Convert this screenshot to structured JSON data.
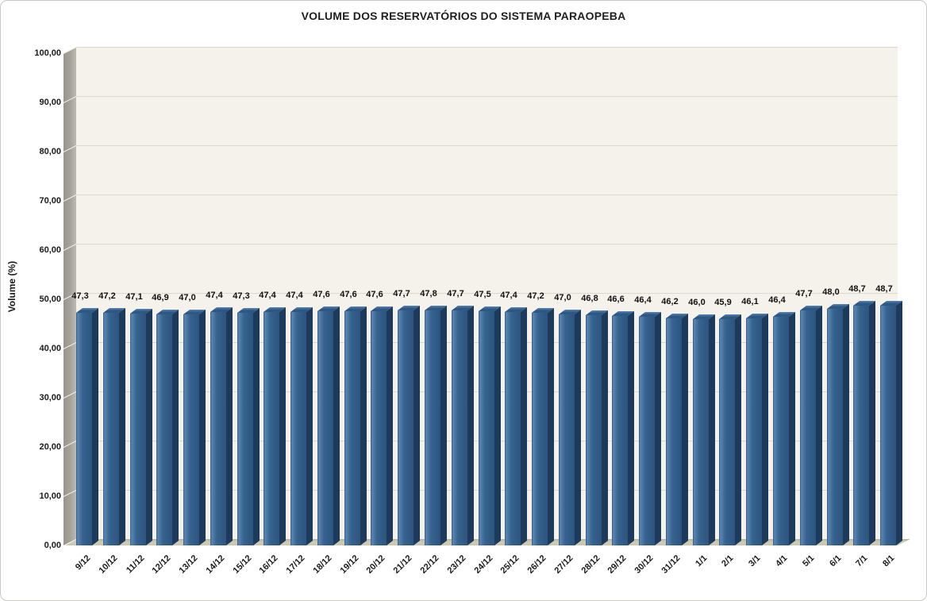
{
  "chart_data": {
    "type": "bar",
    "style_3d": true,
    "title": "VOLUME DOS RESERVATÓRIOS DO SISTEMA PARAOPEBA",
    "xlabel": "",
    "ylabel": "Volume (%)",
    "ylim": [
      0,
      100
    ],
    "y_tick_step": 10,
    "grid": true,
    "legend": false,
    "y_ticks": [
      "0,00",
      "10,00",
      "20,00",
      "30,00",
      "40,00",
      "50,00",
      "60,00",
      "70,00",
      "80,00",
      "90,00",
      "100,00"
    ],
    "categories": [
      "9/12",
      "10/12",
      "11/12",
      "12/12",
      "13/12",
      "14/12",
      "15/12",
      "16/12",
      "17/12",
      "18/12",
      "19/12",
      "20/12",
      "21/12",
      "22/12",
      "23/12",
      "24/12",
      "25/12",
      "26/12",
      "27/12",
      "28/12",
      "29/12",
      "30/12",
      "31/12",
      "1/1",
      "2/1",
      "3/1",
      "4/1",
      "5/1",
      "6/1",
      "7/1",
      "8/1"
    ],
    "values": [
      47.3,
      47.2,
      47.1,
      46.9,
      47.0,
      47.4,
      47.3,
      47.4,
      47.4,
      47.6,
      47.6,
      47.6,
      47.7,
      47.8,
      47.7,
      47.5,
      47.4,
      47.2,
      47.0,
      46.8,
      46.6,
      46.4,
      46.2,
      46.0,
      45.9,
      46.1,
      46.4,
      47.7,
      48.0,
      48.7,
      48.7
    ],
    "data_labels": [
      "47,3",
      "47,2",
      "47,1",
      "46,9",
      "47,0",
      "47,4",
      "47,3",
      "47,4",
      "47,4",
      "47,6",
      "47,6",
      "47,6",
      "47,7",
      "47,8",
      "47,7",
      "47,5",
      "47,4",
      "47,2",
      "47,0",
      "46,8",
      "46,6",
      "46,4",
      "46,2",
      "46,0",
      "45,9",
      "46,1",
      "46,4",
      "47,7",
      "48,0",
      "48,7",
      "48,7"
    ],
    "colors": {
      "bar_front": "#36638F",
      "bar_front_dark": "#2C547E",
      "bar_highlight": "#5B86B3",
      "bar_side": "#1B3A5C",
      "bar_top": "#2D5884",
      "plot_bg": "#F5F2EB",
      "gridline": "#DBD8D0",
      "wall": "#A5A39B",
      "floor": "#CFCBB5",
      "text": "#1A1A1A"
    }
  }
}
